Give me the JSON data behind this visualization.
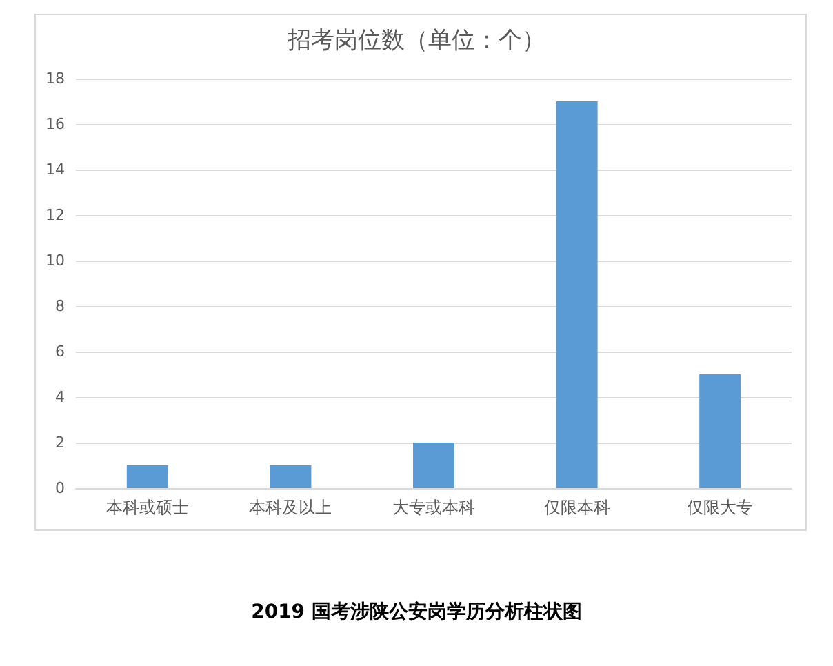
{
  "chart_data": {
    "type": "bar",
    "title": "招考岗位数（单位：个）",
    "categories": [
      "本科或硕士",
      "本科及以上",
      "大专或本科",
      "仅限本科",
      "仅限大专"
    ],
    "values": [
      1,
      1,
      2,
      17,
      5
    ],
    "color": "#5b9bd5",
    "ylim": [
      0,
      18
    ],
    "yticks": [
      0,
      2,
      4,
      6,
      8,
      10,
      12,
      14,
      16,
      18
    ],
    "grid": "y",
    "annotations": [
      "2019 国考涉陕公安岗学历分析柱状图"
    ]
  }
}
